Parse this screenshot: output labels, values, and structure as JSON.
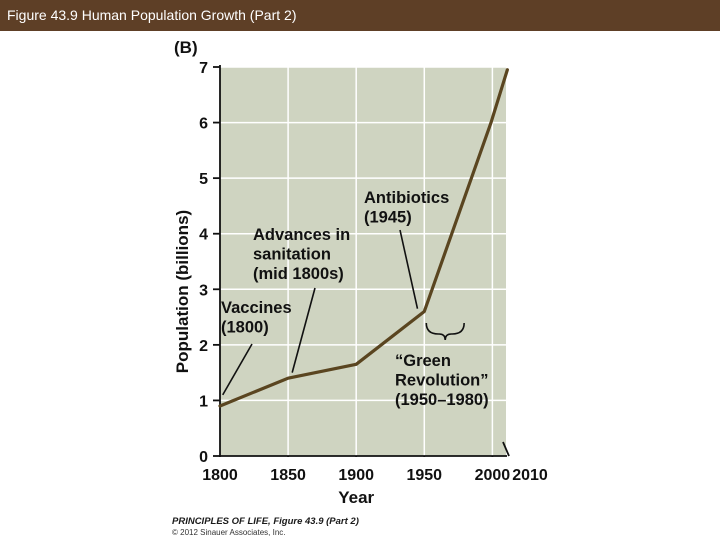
{
  "header": {
    "title": "Figure 43.9  Human Population Growth (Part 2)"
  },
  "footer": {
    "brand": "PRINCIPLES OF LIFE, Figure 43.9 (Part 2)",
    "copyright": "© 2012 Sinauer Associates, Inc."
  },
  "colors": {
    "header_bg": "#5e3f26",
    "plot_bg": "#cfd4c1",
    "line": "#5a4520",
    "grid": "#ffffff"
  },
  "chart_data": {
    "type": "line",
    "panel_label": "(B)",
    "xlabel": "Year",
    "ylabel": "Population (billions)",
    "xlim": [
      1800,
      2010
    ],
    "ylim": [
      0,
      7
    ],
    "x_ticks": [
      1800,
      1850,
      1900,
      1950,
      2000,
      2010
    ],
    "y_ticks": [
      0,
      1,
      2,
      3,
      4,
      5,
      6,
      7
    ],
    "grid": true,
    "series": [
      {
        "x": [
          1800,
          1850,
          1900,
          1950,
          1999,
          2011
        ],
        "y": [
          0.9,
          1.4,
          1.65,
          2.6,
          6.0,
          6.95
        ]
      }
    ],
    "annotations": [
      {
        "lines": [
          "Vaccines",
          "(1800)"
        ],
        "point": [
          1802,
          1.1
        ]
      },
      {
        "lines": [
          "Advances in",
          "sanitation",
          "(mid 1800s)"
        ],
        "point": [
          1853,
          1.5
        ]
      },
      {
        "lines": [
          "Antibiotics",
          "(1945)"
        ],
        "point": [
          1945,
          2.65
        ]
      },
      {
        "lines": [
          "“Green",
          "Revolution”",
          "(1950–1980)"
        ],
        "range": [
          1950,
          1980
        ]
      }
    ]
  }
}
